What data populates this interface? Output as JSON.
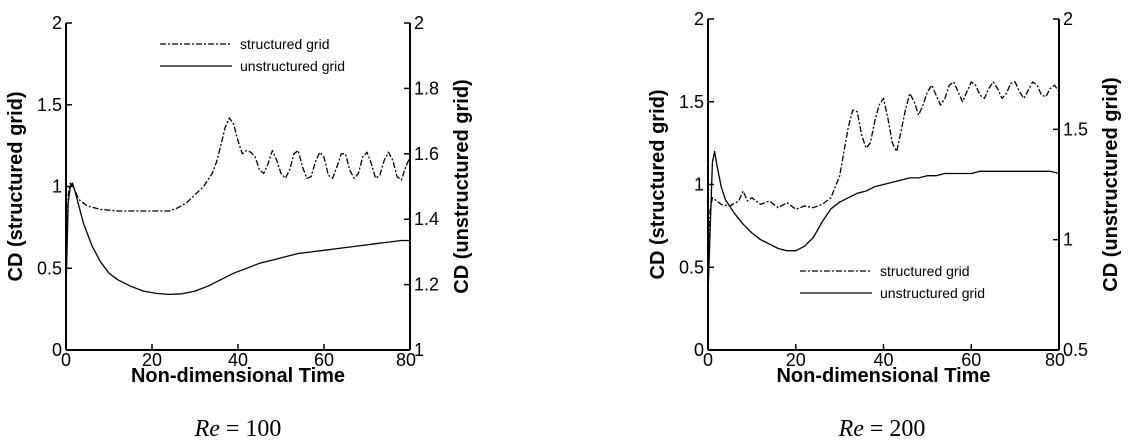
{
  "chart_data": [
    {
      "type": "line",
      "caption_var": "Re",
      "caption_rest": " = 100",
      "xlabel": "Non-dimensional Time",
      "ylabel": "CD (structured grid)",
      "y2label": "CD (unstructured grid)",
      "xlim": [
        0,
        80
      ],
      "ylim": [
        0,
        2
      ],
      "y2lim": [
        1,
        2
      ],
      "xticks": [
        "0",
        "20",
        "40",
        "60",
        "80"
      ],
      "yticks": [
        "0",
        "0.5",
        "1",
        "1.5",
        "2"
      ],
      "y2ticks": [
        "1",
        "1.2",
        "1.4",
        "1.6",
        "1.8",
        "2"
      ],
      "legend_position": "top-center",
      "series": [
        {
          "name": "structured grid",
          "axis": "left",
          "style": "dashdot",
          "x": [
            0,
            0.5,
            1,
            2,
            3,
            5,
            8,
            12,
            16,
            20,
            24,
            26,
            28,
            30,
            32,
            34,
            35,
            36,
            37,
            38,
            39,
            40,
            41,
            42,
            43,
            44,
            45,
            46,
            47,
            48,
            49,
            50,
            51,
            52,
            53,
            54,
            55,
            56,
            57,
            58,
            59,
            60,
            61,
            62,
            63,
            64,
            65,
            66,
            67,
            68,
            69,
            70,
            71,
            72,
            73,
            74,
            75,
            76,
            77,
            78,
            79,
            80
          ],
          "values": [
            0.5,
            0.95,
            1.02,
            0.98,
            0.92,
            0.88,
            0.86,
            0.85,
            0.85,
            0.85,
            0.85,
            0.87,
            0.9,
            0.95,
            1.0,
            1.08,
            1.15,
            1.25,
            1.36,
            1.42,
            1.38,
            1.28,
            1.2,
            1.22,
            1.21,
            1.18,
            1.1,
            1.08,
            1.14,
            1.22,
            1.16,
            1.08,
            1.05,
            1.1,
            1.2,
            1.22,
            1.12,
            1.05,
            1.06,
            1.15,
            1.21,
            1.18,
            1.07,
            1.05,
            1.12,
            1.2,
            1.2,
            1.1,
            1.05,
            1.08,
            1.18,
            1.21,
            1.14,
            1.05,
            1.07,
            1.16,
            1.21,
            1.16,
            1.06,
            1.04,
            1.12,
            1.18
          ]
        },
        {
          "name": "unstructured grid",
          "axis": "right",
          "style": "solid",
          "x": [
            0,
            0.5,
            1,
            1.5,
            2,
            3,
            4,
            6,
            8,
            10,
            12,
            15,
            18,
            21,
            24,
            27,
            30,
            33,
            36,
            39,
            42,
            45,
            48,
            51,
            54,
            57,
            60,
            63,
            66,
            69,
            72,
            75,
            78,
            80
          ],
          "values": [
            1.18,
            1.45,
            1.5,
            1.51,
            1.49,
            1.44,
            1.39,
            1.32,
            1.27,
            1.235,
            1.215,
            1.195,
            1.18,
            1.173,
            1.17,
            1.172,
            1.18,
            1.195,
            1.215,
            1.235,
            1.25,
            1.265,
            1.275,
            1.285,
            1.295,
            1.3,
            1.305,
            1.31,
            1.315,
            1.32,
            1.325,
            1.33,
            1.335,
            1.335
          ]
        }
      ]
    },
    {
      "type": "line",
      "caption_var": "Re",
      "caption_rest": " = 200",
      "xlabel": "Non-dimensional Time",
      "ylabel": "CD (structured grid)",
      "y2label": "CD (unstructured grid)",
      "xlim": [
        0,
        80
      ],
      "ylim": [
        0,
        2
      ],
      "y2lim": [
        0.5,
        2
      ],
      "xticks": [
        "0",
        "20",
        "40",
        "60",
        "80"
      ],
      "yticks": [
        "0",
        "0.5",
        "1",
        "1.5",
        "2"
      ],
      "y2ticks": [
        "0.5",
        "1",
        "1.5",
        "2"
      ],
      "legend_position": "lower-right",
      "series": [
        {
          "name": "structured grid",
          "axis": "left",
          "style": "dashdot",
          "x": [
            0,
            0.5,
            1,
            2,
            3,
            5,
            7,
            8,
            9,
            10,
            12,
            14,
            16,
            18,
            20,
            22,
            24,
            26,
            28,
            30,
            31,
            32,
            33,
            34,
            35,
            36,
            37,
            38,
            39,
            40,
            41,
            42,
            43,
            44,
            45,
            46,
            47,
            48,
            49,
            50,
            51,
            52,
            53,
            54,
            55,
            56,
            57,
            58,
            59,
            60,
            61,
            62,
            63,
            64,
            65,
            66,
            67,
            68,
            69,
            70,
            71,
            72,
            73,
            74,
            75,
            76,
            77,
            78,
            79,
            80
          ],
          "values": [
            0.6,
            0.85,
            0.92,
            0.9,
            0.88,
            0.87,
            0.9,
            0.96,
            0.9,
            0.92,
            0.88,
            0.9,
            0.86,
            0.89,
            0.85,
            0.87,
            0.86,
            0.88,
            0.92,
            1.05,
            1.2,
            1.35,
            1.45,
            1.44,
            1.3,
            1.22,
            1.25,
            1.38,
            1.48,
            1.52,
            1.4,
            1.25,
            1.2,
            1.32,
            1.45,
            1.55,
            1.5,
            1.42,
            1.48,
            1.56,
            1.6,
            1.54,
            1.48,
            1.52,
            1.6,
            1.62,
            1.56,
            1.5,
            1.56,
            1.62,
            1.6,
            1.54,
            1.52,
            1.58,
            1.62,
            1.58,
            1.52,
            1.55,
            1.61,
            1.62,
            1.56,
            1.52,
            1.57,
            1.62,
            1.6,
            1.54,
            1.53,
            1.58,
            1.6,
            1.56
          ]
        },
        {
          "name": "unstructured grid",
          "axis": "right",
          "style": "solid",
          "x": [
            0,
            0.5,
            1,
            1.5,
            2,
            3,
            4,
            6,
            8,
            10,
            12,
            14,
            16,
            18,
            20,
            22,
            24,
            26,
            28,
            30,
            32,
            34,
            36,
            38,
            40,
            42,
            44,
            46,
            48,
            50,
            52,
            54,
            56,
            58,
            60,
            62,
            64,
            66,
            68,
            70,
            72,
            74,
            76,
            78,
            80
          ],
          "values": [
            0.75,
            1.05,
            1.35,
            1.4,
            1.34,
            1.24,
            1.18,
            1.12,
            1.07,
            1.03,
            1.0,
            0.98,
            0.96,
            0.95,
            0.95,
            0.97,
            1.01,
            1.08,
            1.14,
            1.17,
            1.19,
            1.21,
            1.22,
            1.24,
            1.25,
            1.26,
            1.27,
            1.28,
            1.28,
            1.29,
            1.29,
            1.3,
            1.3,
            1.3,
            1.3,
            1.31,
            1.31,
            1.31,
            1.31,
            1.31,
            1.31,
            1.31,
            1.31,
            1.31,
            1.3
          ]
        }
      ]
    }
  ]
}
